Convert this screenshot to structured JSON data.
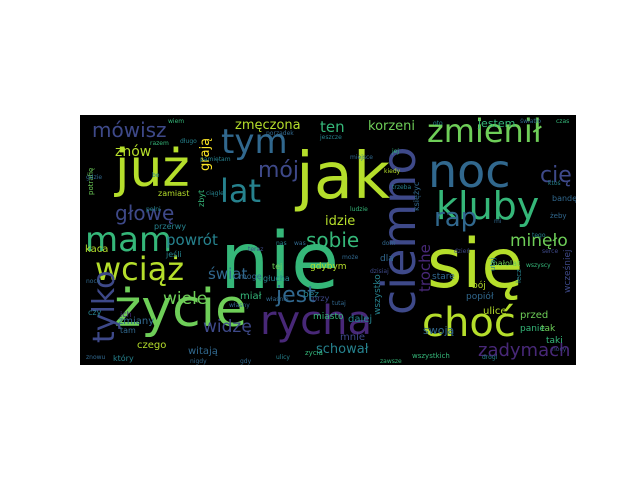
{
  "wordcloud": {
    "palette": {
      "yellowgreen": "#b5de2b",
      "green": "#6ece58",
      "teal": "#35b779",
      "cyan": "#1f9e89",
      "blue": "#26828e",
      "slate": "#31688e",
      "indigo": "#3e4989",
      "purple": "#482878",
      "violet": "#440154",
      "yellow": "#fde725"
    },
    "words": [
      {
        "text": "nie",
        "weight": 100,
        "color": "#35b779"
      },
      {
        "text": "jak",
        "weight": 92,
        "color": "#b5de2b"
      },
      {
        "text": "się",
        "weight": 88,
        "color": "#b5de2b"
      },
      {
        "text": "już",
        "weight": 70,
        "color": "#b5de2b"
      },
      {
        "text": "życie",
        "weight": 66,
        "color": "#6ece58"
      },
      {
        "text": "ciemno",
        "weight": 64,
        "color": "#3e4989"
      },
      {
        "text": "noc",
        "weight": 60,
        "color": "#31688e"
      },
      {
        "text": "rycha",
        "weight": 56,
        "color": "#482878"
      },
      {
        "text": "choć",
        "weight": 56,
        "color": "#b5de2b"
      },
      {
        "text": "kluby",
        "weight": 52,
        "color": "#35b779"
      },
      {
        "text": "tym",
        "weight": 50,
        "color": "#31688e"
      },
      {
        "text": "mam",
        "weight": 48,
        "color": "#35b779"
      },
      {
        "text": "zmienił",
        "weight": 46,
        "color": "#6ece58"
      },
      {
        "text": "wciąż",
        "weight": 46,
        "color": "#b5de2b"
      },
      {
        "text": "lat",
        "weight": 40,
        "color": "#26828e"
      },
      {
        "text": "tylko",
        "weight": 38,
        "color": "#3e4989"
      },
      {
        "text": "rap",
        "weight": 34,
        "color": "#31688e"
      },
      {
        "text": "jest",
        "weight": 30,
        "color": "#31688e"
      },
      {
        "text": "mówisz",
        "weight": 28,
        "color": "#3e4989"
      },
      {
        "text": "mój",
        "weight": 30,
        "color": "#3e4989"
      },
      {
        "text": "głowę",
        "weight": 28,
        "color": "#3e4989"
      },
      {
        "text": "sobie",
        "weight": 26,
        "color": "#35b779"
      },
      {
        "text": "cię",
        "weight": 28,
        "color": "#3e4989"
      },
      {
        "text": "zadymach",
        "weight": 26,
        "color": "#482878"
      },
      {
        "text": "minęło",
        "weight": 24,
        "color": "#6ece58"
      },
      {
        "text": "widzę",
        "weight": 24,
        "color": "#3e4989"
      },
      {
        "text": "powrót",
        "weight": 22,
        "color": "#26828e"
      },
      {
        "text": "wiele",
        "weight": 22,
        "color": "#6ece58"
      },
      {
        "text": "troche",
        "weight": 22,
        "color": "#482878"
      },
      {
        "text": "schował",
        "weight": 18,
        "color": "#26828e"
      },
      {
        "text": "ten",
        "weight": 20,
        "color": "#35b779"
      },
      {
        "text": "korzeni",
        "weight": 20,
        "color": "#6ece58"
      },
      {
        "text": "świat",
        "weight": 20,
        "color": "#31688e"
      },
      {
        "text": "grają",
        "weight": 18,
        "color": "#fde725"
      },
      {
        "text": "znów",
        "weight": 18,
        "color": "#b5de2b"
      },
      {
        "text": "idzie",
        "weight": 18,
        "color": "#b5de2b"
      },
      {
        "text": "zmęczona",
        "weight": 16,
        "color": "#b5de2b"
      },
      {
        "text": "jestem",
        "weight": 14,
        "color": "#35b779"
      },
      {
        "text": "swoją",
        "weight": 14,
        "color": "#31688e"
      },
      {
        "text": "ulice",
        "weight": 12,
        "color": "#b5de2b"
      },
      {
        "text": "przed",
        "weight": 12,
        "color": "#6ece58"
      },
      {
        "text": "panie",
        "weight": 12,
        "color": "#35b779"
      },
      {
        "text": "dalej",
        "weight": 12,
        "color": "#26828e"
      },
      {
        "text": "mnie",
        "weight": 12,
        "color": "#3e4989"
      },
      {
        "text": "miał",
        "weight": 12,
        "color": "#35b779"
      },
      {
        "text": "czego",
        "weight": 12,
        "color": "#b5de2b"
      },
      {
        "text": "witają",
        "weight": 12,
        "color": "#31688e"
      },
      {
        "text": "zmiany",
        "weight": 10,
        "color": "#31688e"
      },
      {
        "text": "wszystko",
        "weight": 10,
        "color": "#26828e"
      },
      {
        "text": "miasto",
        "weight": 10,
        "color": "#35b779"
      },
      {
        "text": "taki",
        "weight": 10,
        "color": "#35b779"
      },
      {
        "text": "kaca",
        "weight": 12,
        "color": "#b5de2b"
      },
      {
        "text": "stare",
        "weight": 10,
        "color": "#31688e"
      },
      {
        "text": "bój",
        "weight": 10,
        "color": "#b5de2b"
      },
      {
        "text": "popiół",
        "weight": 10,
        "color": "#31688e"
      },
      {
        "text": "wcześniej",
        "weight": 10,
        "color": "#3e4989"
      },
      {
        "text": "gdybym",
        "weight": 10,
        "color": "#b5de2b"
      },
      {
        "text": "dla",
        "weight": 10,
        "color": "#31688e"
      },
      {
        "text": "bez",
        "weight": 10,
        "color": "#26828e"
      },
      {
        "text": "tak",
        "weight": 10,
        "color": "#6ece58"
      },
      {
        "text": "tej",
        "weight": 9,
        "color": "#6ece58"
      },
      {
        "text": "głucha",
        "weight": 9,
        "color": "#26828e"
      },
      {
        "text": "zbyt",
        "weight": 9,
        "color": "#35b779"
      },
      {
        "text": "zamiast",
        "weight": 9,
        "color": "#b5de2b"
      },
      {
        "text": "mogę",
        "weight": 9,
        "color": "#31688e"
      },
      {
        "text": "który",
        "weight": 9,
        "color": "#26828e"
      },
      {
        "text": "czy",
        "weight": 9,
        "color": "#26828e"
      },
      {
        "text": "tam",
        "weight": 8,
        "color": "#31688e"
      },
      {
        "text": "ich",
        "weight": 8,
        "color": "#482878"
      },
      {
        "text": "jeśli",
        "weight": 8,
        "color": "#26828e"
      },
      {
        "text": "przerwy",
        "weight": 8,
        "color": "#26828e"
      },
      {
        "text": "wszystkich",
        "weight": 8,
        "color": "#35b779"
      },
      {
        "text": "małolat",
        "weight": 8,
        "color": "#6ece58"
      },
      {
        "text": "bandę",
        "weight": 8,
        "color": "#31688e"
      },
      {
        "text": "zycia",
        "weight": 7,
        "color": "#35b779"
      },
      {
        "text": "przy",
        "weight": 8,
        "color": "#3e4989"
      },
      {
        "text": "żeby",
        "weight": 7,
        "color": "#31688e"
      },
      {
        "text": "potrafię",
        "weight": 7,
        "color": "#6ece58"
      },
      {
        "text": "ciągle",
        "weight": 6,
        "color": "#26828e"
      },
      {
        "text": "utaj",
        "weight": 7,
        "color": "#26828e"
      },
      {
        "text": "lecz",
        "weight": 7,
        "color": "#26828e"
      },
      {
        "text": "księżyc",
        "weight": 8,
        "color": "#31688e"
      },
      {
        "text": "oto",
        "weight": 6,
        "color": "#26828e"
      },
      {
        "text": "porządek",
        "weight": 6,
        "color": "#31688e"
      },
      {
        "text": "właśnie",
        "weight": 6,
        "color": "#31688e"
      },
      {
        "text": "własny",
        "weight": 6,
        "color": "#31688e"
      },
      {
        "text": "pełni",
        "weight": 6,
        "color": "#26828e"
      },
      {
        "text": "gdzie",
        "weight": 6,
        "color": "#31688e"
      },
      {
        "text": "razem",
        "weight": 6,
        "color": "#35b779"
      },
      {
        "text": "długo",
        "weight": 6,
        "color": "#26828e"
      },
      {
        "text": "noce",
        "weight": 6,
        "color": "#31688e"
      },
      {
        "text": "ludzie",
        "weight": 6,
        "color": "#35b779"
      },
      {
        "text": "kiedy",
        "weight": 6,
        "color": "#b5de2b"
      },
      {
        "text": "serce",
        "weight": 6,
        "color": "#3e4989"
      },
      {
        "text": "dom",
        "weight": 6,
        "color": "#31688e"
      },
      {
        "text": "drogi",
        "weight": 6,
        "color": "#26828e"
      },
      {
        "text": "wiem",
        "weight": 6,
        "color": "#35b779"
      },
      {
        "text": "znowu",
        "weight": 6,
        "color": "#31688e"
      },
      {
        "text": "ulicy",
        "weight": 6,
        "color": "#26828e"
      },
      {
        "text": "nocy",
        "weight": 6,
        "color": "#3e4989"
      },
      {
        "text": "światło",
        "weight": 6,
        "color": "#31688e"
      },
      {
        "text": "pamiętam",
        "weight": 6,
        "color": "#26828e"
      },
      {
        "text": "miejsce",
        "weight": 6,
        "color": "#31688e"
      },
      {
        "text": "czas",
        "weight": 6,
        "color": "#35b779"
      },
      {
        "text": "trzeba",
        "weight": 6,
        "color": "#26828e"
      },
      {
        "text": "tutaj",
        "weight": 6,
        "color": "#31688e"
      },
      {
        "text": "dzisiaj",
        "weight": 6,
        "color": "#3e4989"
      },
      {
        "text": "bo",
        "weight": 6,
        "color": "#26828e"
      },
      {
        "text": "gdy",
        "weight": 6,
        "color": "#31688e"
      },
      {
        "text": "wszyscy",
        "weight": 6,
        "color": "#35b779"
      },
      {
        "text": "tego",
        "weight": 6,
        "color": "#26828e"
      },
      {
        "text": "może",
        "weight": 6,
        "color": "#31688e"
      },
      {
        "text": "teraz",
        "weight": 6,
        "color": "#3e4989"
      },
      {
        "text": "jeszcze",
        "weight": 6,
        "color": "#26828e"
      },
      {
        "text": "mi",
        "weight": 6,
        "color": "#31688e"
      },
      {
        "text": "jej",
        "weight": 6,
        "color": "#35b779"
      },
      {
        "text": "nas",
        "weight": 6,
        "color": "#26828e"
      },
      {
        "text": "was",
        "weight": 6,
        "color": "#31688e"
      },
      {
        "text": "dzień",
        "weight": 6,
        "color": "#3e4989"
      },
      {
        "text": "ktoś",
        "weight": 6,
        "color": "#26828e"
      },
      {
        "text": "nigdy",
        "weight": 6,
        "color": "#31688e"
      },
      {
        "text": "zawsze",
        "weight": 6,
        "color": "#35b779"
      }
    ]
  }
}
